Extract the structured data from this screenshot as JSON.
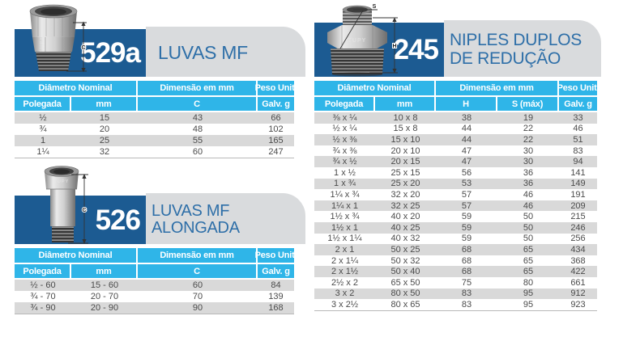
{
  "colors": {
    "banner_blue": "#1c5b92",
    "banner_gray": "#d9dbdd",
    "header_cyan": "#2fb5e8",
    "row_shade": "#d9d9d9",
    "title_blue": "#2e6fa8",
    "text": "#4b4b4b"
  },
  "sections": [
    {
      "code": "529a",
      "title_lines": [
        "LUVAS MF"
      ],
      "photo": {
        "embossed": "TUPY",
        "dim": "C"
      },
      "table": {
        "groups": [
          "Diâmetro Nominal",
          "Dimensão em mm",
          "Peso Unit."
        ],
        "columns": [
          "Polegada",
          "mm",
          "C",
          "Galv. g"
        ],
        "rows": [
          [
            "½",
            "15",
            "43",
            "66"
          ],
          [
            "¾",
            "20",
            "48",
            "102"
          ],
          [
            "1",
            "25",
            "55",
            "165"
          ],
          [
            "1¼",
            "32",
            "60",
            "247"
          ]
        ]
      }
    },
    {
      "code": "526",
      "title_lines": [
        "LUVAS MF ALONGADA"
      ],
      "photo": {
        "embossed": "TUPY",
        "dim": "C"
      },
      "table": {
        "groups": [
          "Diâmetro Nominal",
          "Dimensão em mm",
          "Peso Unit."
        ],
        "columns": [
          "Polegada",
          "mm",
          "C",
          "Galv. g"
        ],
        "rows": [
          [
            "½ - 60",
            "15 - 60",
            "60",
            "84"
          ],
          [
            "¾ - 70",
            "20 - 70",
            "70",
            "139"
          ],
          [
            "¾ - 90",
            "20 - 90",
            "90",
            "168"
          ]
        ]
      }
    },
    {
      "code": "245",
      "title_lines": [
        "NIPLES DUPLOS",
        "DE REDUÇÃO"
      ],
      "photo": {
        "embossed": "TUPY",
        "dim_height": "H",
        "dim_s": "S"
      },
      "table": {
        "groups": [
          "Diâmetro Nominal",
          "Dimensão em mm",
          "Peso Unit."
        ],
        "columns": [
          "Polegada",
          "mm",
          "H",
          "S (máx)",
          "Galv. g"
        ],
        "rows": [
          [
            "⅜ x ¼",
            "10 x 8",
            "38",
            "19",
            "33"
          ],
          [
            "½ x ¼",
            "15 x 8",
            "44",
            "22",
            "46"
          ],
          [
            "½ x ⅜",
            "15 x 10",
            "44",
            "22",
            "51"
          ],
          [
            "¾ x ⅜",
            "20 x 10",
            "47",
            "30",
            "83"
          ],
          [
            "¾ x ½",
            "20 x 15",
            "47",
            "30",
            "94"
          ],
          [
            "1 x ½",
            "25 x 15",
            "56",
            "36",
            "141"
          ],
          [
            "1 x ¾",
            "25 x 20",
            "53",
            "36",
            "149"
          ],
          [
            "1¼ x ¾",
            "32 x 20",
            "57",
            "46",
            "191"
          ],
          [
            "1¼ x 1",
            "32 x 25",
            "57",
            "46",
            "209"
          ],
          [
            "1½ x ¾",
            "40 x 20",
            "59",
            "50",
            "215"
          ],
          [
            "1½ x 1",
            "40 x 25",
            "59",
            "50",
            "246"
          ],
          [
            "1½ x 1¼",
            "40 x 32",
            "59",
            "50",
            "256"
          ],
          [
            "2 x 1",
            "50 x 25",
            "68",
            "65",
            "434"
          ],
          [
            "2 x 1¼",
            "50 x 32",
            "68",
            "65",
            "368"
          ],
          [
            "2 x 1½",
            "50 x 40",
            "68",
            "65",
            "422"
          ],
          [
            "2½ x 2",
            "65 x 50",
            "75",
            "80",
            "661"
          ],
          [
            "3 x 2",
            "80 x 50",
            "83",
            "95",
            "912"
          ],
          [
            "3 x 2½",
            "80 x 65",
            "83",
            "95",
            "923"
          ]
        ]
      }
    }
  ]
}
